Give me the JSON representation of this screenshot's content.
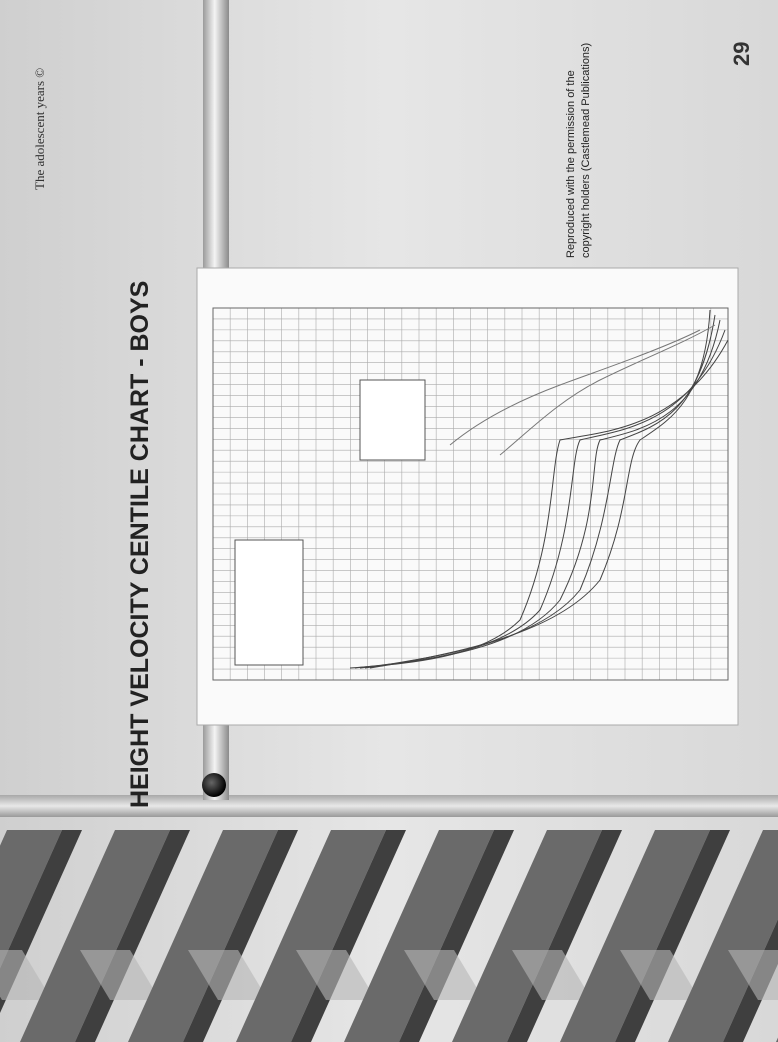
{
  "header": {
    "running_title": "The adolescent years ©",
    "page_number": "29"
  },
  "slide": {
    "title": "HEIGHT VELOCITY CENTILE CHART - BOYS"
  },
  "credit": [
    "Reproduced with the permission of the",
    "copyright holders (Castlemead Publications)"
  ]
}
